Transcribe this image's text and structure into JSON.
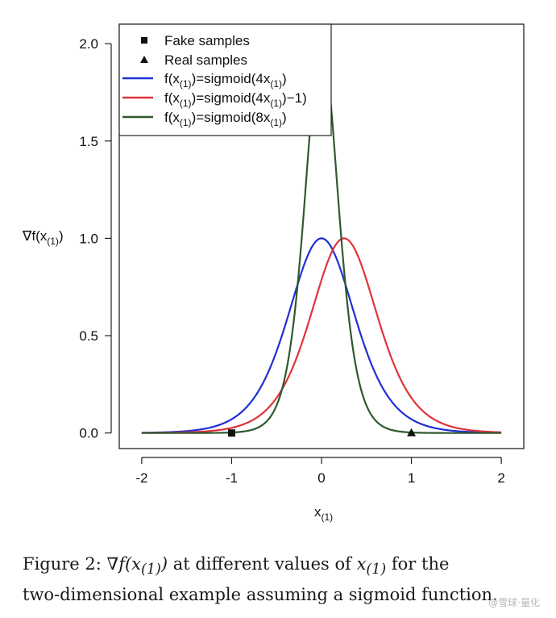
{
  "chart_data": {
    "type": "line",
    "xlabel": "x",
    "xlabel_sub": "(1)",
    "ylabel": "∇f(x",
    "ylabel_sub": "(1)",
    "ylabel_close": ")",
    "xlim": [
      -2.25,
      2.25
    ],
    "ylim": [
      -0.08,
      2.1
    ],
    "x_ticks": [
      -2,
      -1,
      0,
      1,
      2
    ],
    "x_tick_labels": [
      "-2",
      "-1",
      "0",
      "1",
      "2"
    ],
    "y_ticks": [
      0.0,
      0.5,
      1.0,
      1.5,
      2.0
    ],
    "y_tick_labels": [
      "0.0",
      "0.5",
      "1.0",
      "1.5",
      "2.0"
    ],
    "grid": false,
    "legend_position": "top-left",
    "series": [
      {
        "name": "f(x(1))=sigmoid(4x(1))",
        "color": "#1f2fd6",
        "a": 4,
        "b": 0,
        "x_range": [
          -2,
          2
        ]
      },
      {
        "name": "f(x(1))=sigmoid(4x(1)−1)",
        "color": "#e0333a",
        "a": 4,
        "b": -1,
        "x_range": [
          -2,
          2
        ]
      },
      {
        "name": "f(x(1))=sigmoid(8x(1))",
        "color": "#2f5a2f",
        "a": 8,
        "b": 0,
        "x_range": [
          -2,
          2
        ]
      }
    ],
    "points": [
      {
        "name": "Fake samples",
        "marker": "square",
        "x": -1,
        "y": 0
      },
      {
        "name": "Real samples",
        "marker": "triangle",
        "x": 1,
        "y": 0
      }
    ]
  },
  "legend": {
    "fake": "Fake samples",
    "real": "Real samples",
    "blue_a": "f(x",
    "blue_b": ")=sigmoid(4x",
    "blue_c": ")",
    "red_a": "f(x",
    "red_b": ")=sigmoid(4x",
    "red_c": ")−1)",
    "green_a": "f(x",
    "green_b": ")=sigmoid(8x",
    "green_c": ")",
    "sub": "(1)"
  },
  "caption": {
    "prefix": "Figure 2:",
    "math1": "∇f(x",
    "math1_sub": "(1)",
    "math1_close": ")",
    "mid": "at different values of",
    "math2": "x",
    "math2_sub": "(1)",
    "line1_end": "for the",
    "line2": "two-dimensional example assuming a sigmoid function."
  },
  "watermark": "@雪球·量化"
}
